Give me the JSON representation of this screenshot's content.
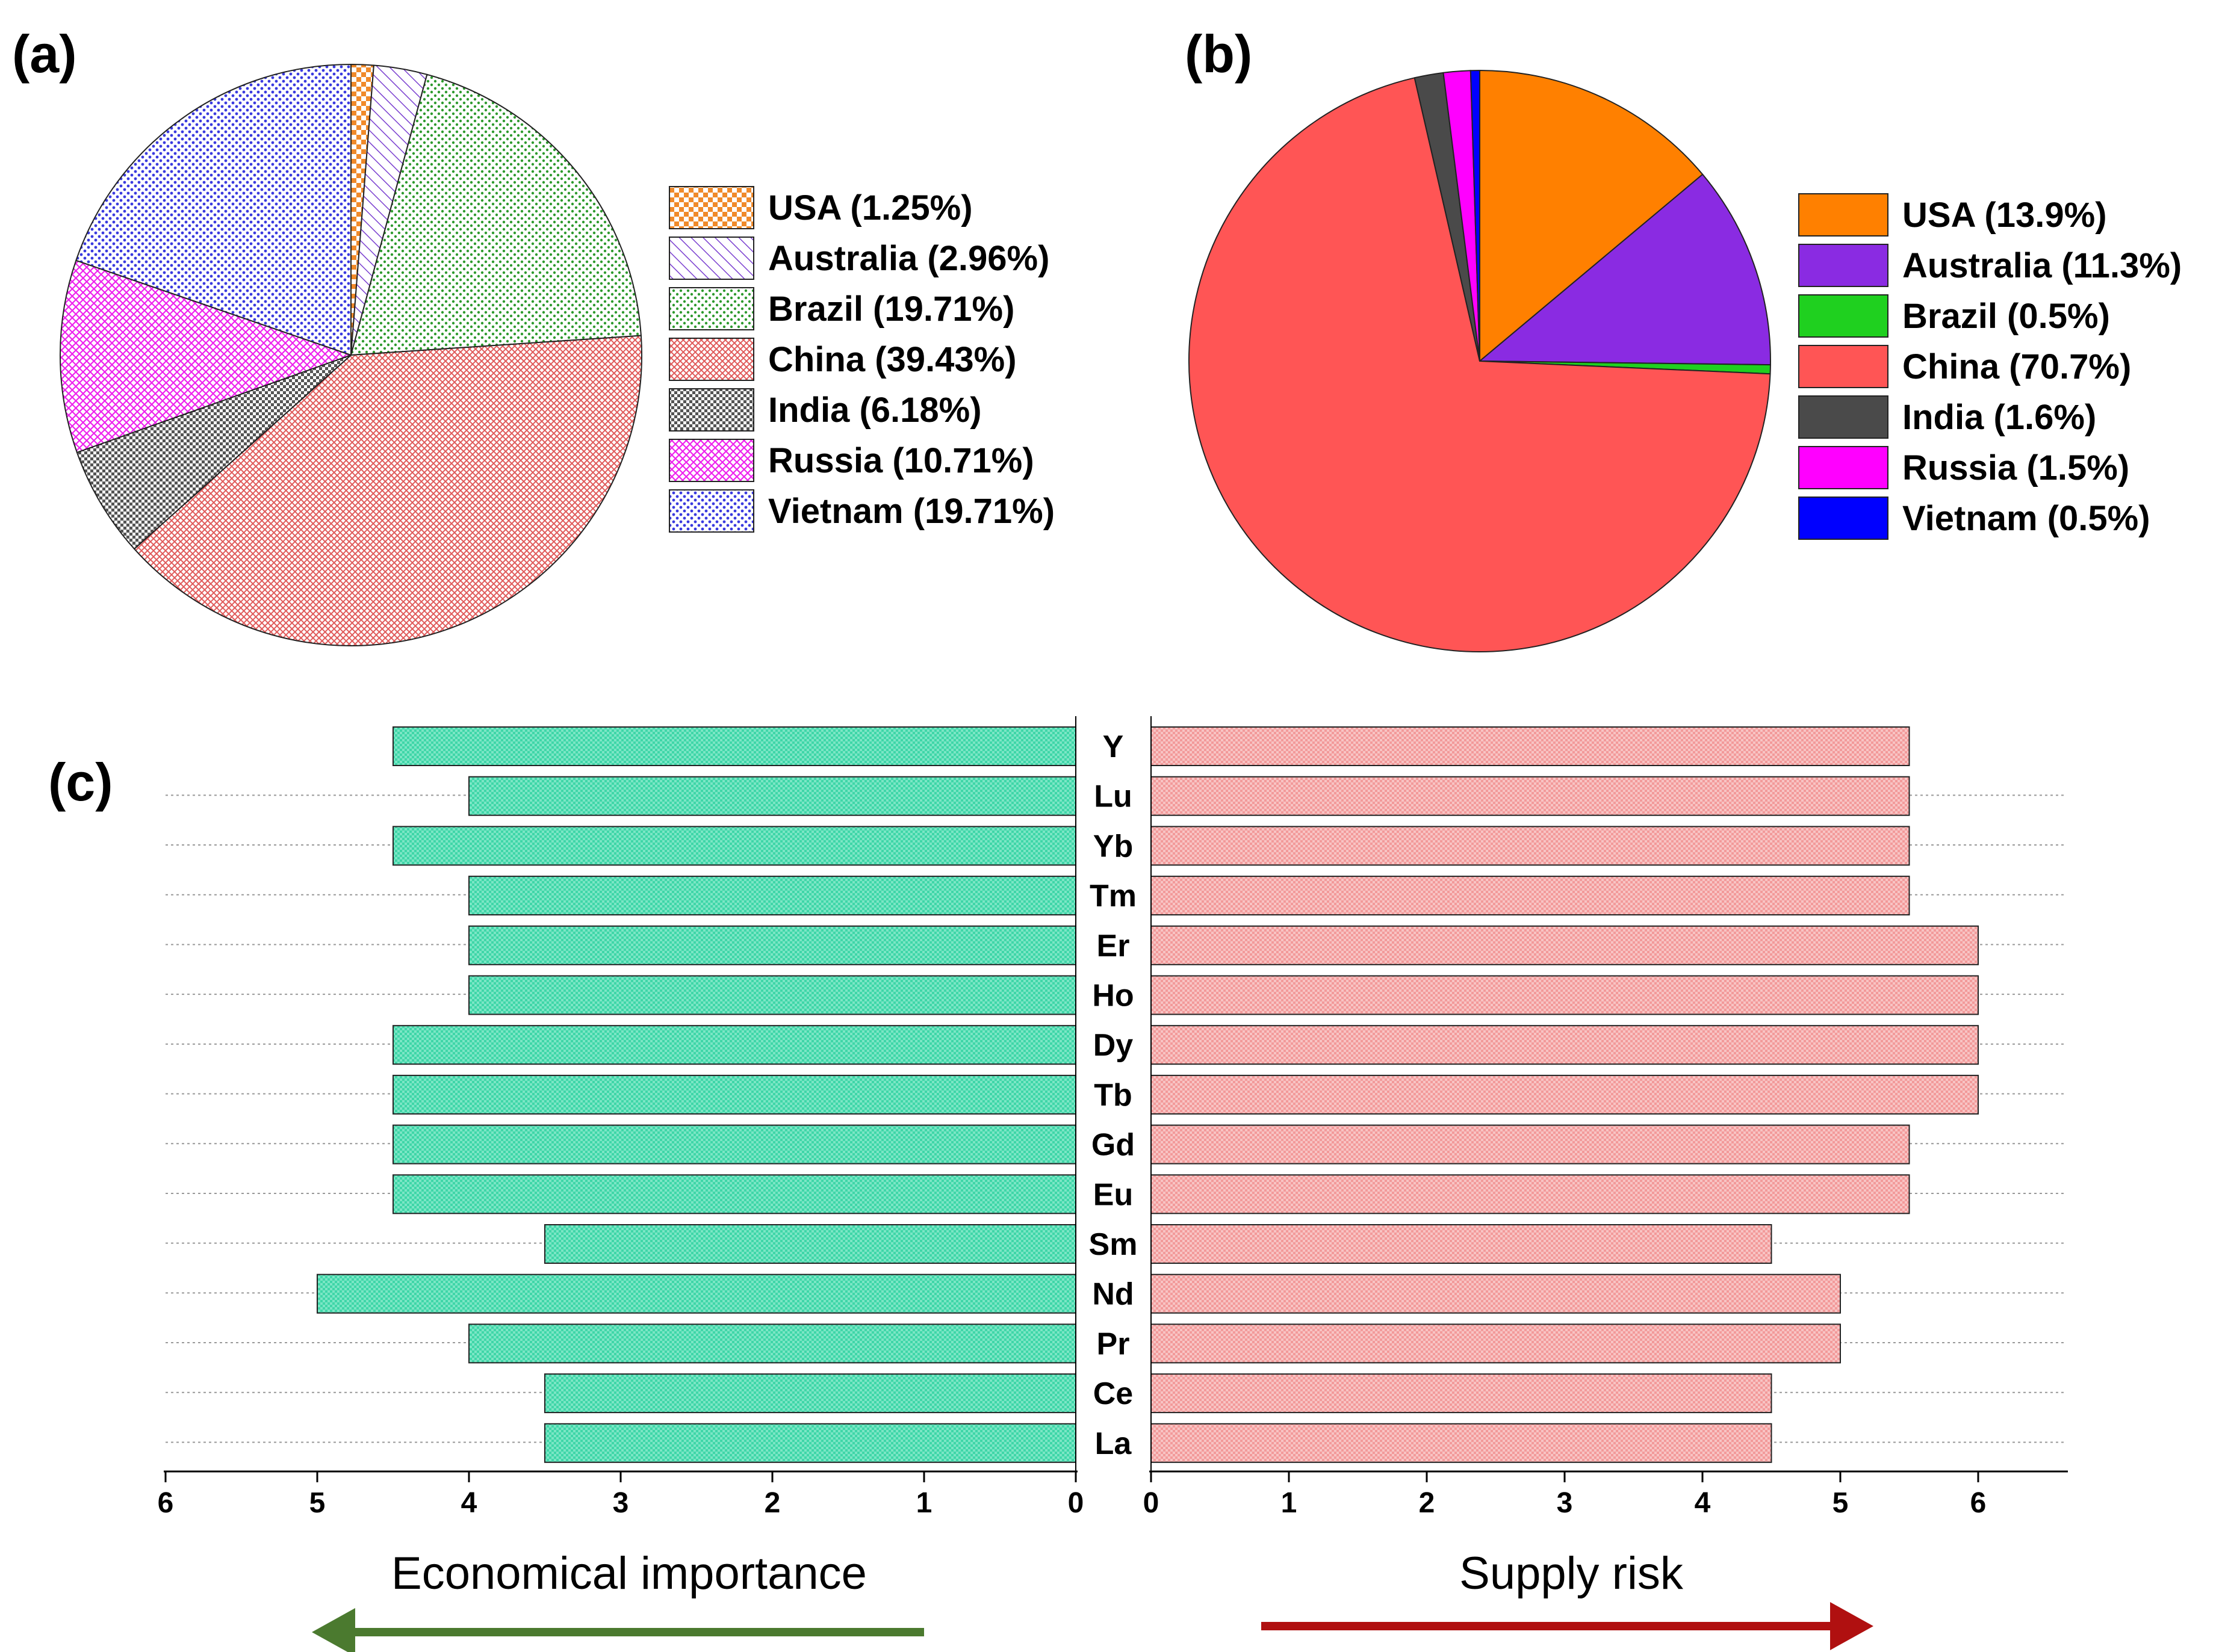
{
  "panels": {
    "a": "(a)",
    "b": "(b)",
    "c": "(c)"
  },
  "colors": {
    "ei_arrow": "#4b7a2f",
    "sr_arrow": "#b01010",
    "ei_bar": "#3fd6a8",
    "sr_bar": "#f29a9a"
  },
  "chart_data": [
    {
      "type": "pie",
      "panel": "(a)",
      "slices": [
        {
          "label": "USA (1.25%)",
          "value": 1.25,
          "color": "#f08a2a",
          "pattern": "checker"
        },
        {
          "label": "Australia (2.96%)",
          "value": 2.96,
          "color": "#7a3fd0",
          "pattern": "diagonal"
        },
        {
          "label": "Brazil (19.71%)",
          "value": 19.71,
          "color": "#2e9a2e",
          "pattern": "dots"
        },
        {
          "label": "China (39.43%)",
          "value": 39.43,
          "color": "#e05a5a",
          "pattern": "crosshatch"
        },
        {
          "label": "India (6.18%)",
          "value": 6.18,
          "color": "#555555",
          "pattern": "checker-dense"
        },
        {
          "label": "Russia (10.71%)",
          "value": 10.71,
          "color": "#ee22ee",
          "pattern": "crosshatch"
        },
        {
          "label": "Vietnam (19.71%)",
          "value": 19.71,
          "color": "#3a3adf",
          "pattern": "dots"
        }
      ]
    },
    {
      "type": "pie",
      "panel": "(b)",
      "slices": [
        {
          "label": "USA (13.9%)",
          "value": 13.9,
          "color": "#ff8000"
        },
        {
          "label": "Australia (11.3%)",
          "value": 11.3,
          "color": "#8a2be2"
        },
        {
          "label": "Brazil (0.5%)",
          "value": 0.5,
          "color": "#1fd01f"
        },
        {
          "label": "China (70.7%)",
          "value": 70.7,
          "color": "#ff5555"
        },
        {
          "label": "India (1.6%)",
          "value": 1.6,
          "color": "#4a4a4a"
        },
        {
          "label": "Russia (1.5%)",
          "value": 1.5,
          "color": "#ff00ff"
        },
        {
          "label": "Vietnam (0.5%)",
          "value": 0.5,
          "color": "#0000ff"
        }
      ]
    },
    {
      "type": "bar",
      "panel": "(c)",
      "orientation": "horizontal-butterfly",
      "categories": [
        "Y",
        "Lu",
        "Yb",
        "Tm",
        "Er",
        "Ho",
        "Dy",
        "Tb",
        "Gd",
        "Eu",
        "Sm",
        "Nd",
        "Pr",
        "Ce",
        "La"
      ],
      "series": [
        {
          "name": "Economical importance",
          "values": [
            4.5,
            4,
            4.5,
            4,
            4,
            4,
            4.5,
            4.5,
            4.5,
            4.5,
            3.5,
            5,
            4,
            3.5,
            3.5
          ]
        },
        {
          "name": "Supply risk",
          "values": [
            5.5,
            5.5,
            5.5,
            5.5,
            6,
            6,
            6,
            6,
            5.5,
            5.5,
            4.5,
            5,
            5,
            4.5,
            4.5
          ]
        }
      ],
      "left_ticks": [
        "6",
        "5",
        "4",
        "3",
        "2",
        "1",
        "0"
      ],
      "right_ticks": [
        "0",
        "1",
        "2",
        "3",
        "4",
        "5",
        "6"
      ],
      "xlim": [
        0,
        6
      ],
      "left_xlabel": "Economical importance",
      "right_xlabel": "Supply risk"
    }
  ]
}
